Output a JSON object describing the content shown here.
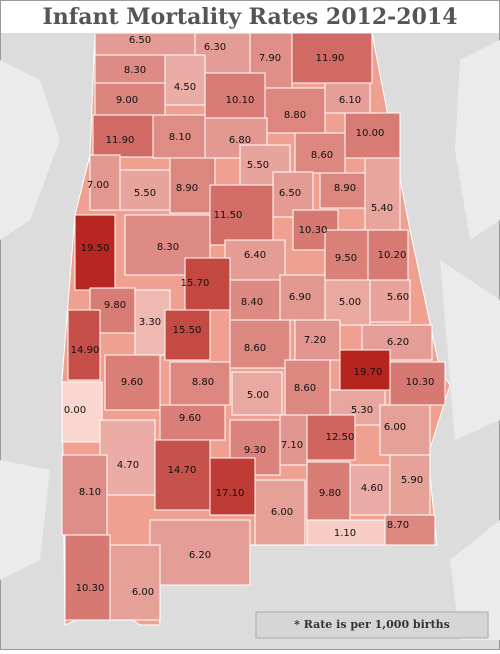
{
  "chart_data": {
    "type": "choropleth",
    "title": "Infant Mortality Rates 2012-2014",
    "note": "* Rate is per 1,000 births",
    "values": [
      6.5,
      6.3,
      7.9,
      11.9,
      8.3,
      4.5,
      9.0,
      10.1,
      8.8,
      6.1,
      11.9,
      8.1,
      6.8,
      10.0,
      5.5,
      8.6,
      7.0,
      5.5,
      8.9,
      6.5,
      8.9,
      5.4,
      11.5,
      10.3,
      19.5,
      8.3,
      6.4,
      9.5,
      10.2,
      15.7,
      6.9,
      5.0,
      5.6,
      9.8,
      3.3,
      8.4,
      15.5,
      14.9,
      7.2,
      6.2,
      8.6,
      19.7,
      10.3,
      9.6,
      8.8,
      8.6,
      5.0,
      0.0,
      5.3,
      9.6,
      6.0,
      9.3,
      7.1,
      12.5,
      4.7,
      14.7,
      17.1,
      9.8,
      4.6,
      5.9,
      8.1,
      6.0,
      6.2,
      1.1,
      8.7,
      10.3,
      6.0
    ],
    "value_labels": [
      "6.50",
      "6.30",
      "7.90",
      "11.90",
      "8.30",
      "4.50",
      "9.00",
      "10.10",
      "8.80",
      "6.10",
      "11.90",
      "8.10",
      "6.80",
      "10.00",
      "5.50",
      "8.60",
      "7.00",
      "5.50",
      "8.90",
      "6.50",
      "8.90",
      "5.40",
      "11.50",
      "10.30",
      "19.50",
      "8.30",
      "6.40",
      "9.50",
      "10.20",
      "15.70",
      "6.90",
      "5.00",
      "5.60",
      "9.80",
      "3.30",
      "8.40",
      "15.50",
      "14.90",
      "7.20",
      "6.20",
      "8.60",
      "19.70",
      "10.30",
      "9.60",
      "8.80",
      "8.60",
      "5.00",
      "0.00",
      "5.30",
      "9.60",
      "6.00",
      "9.30",
      "7.10",
      "12.50",
      "4.70",
      "14.70",
      "17.10",
      "9.80",
      "4.60",
      "5.90",
      "8.10",
      "6.00",
      "6.20",
      "1.10",
      "8.70",
      "10.30",
      "6.00"
    ]
  }
}
